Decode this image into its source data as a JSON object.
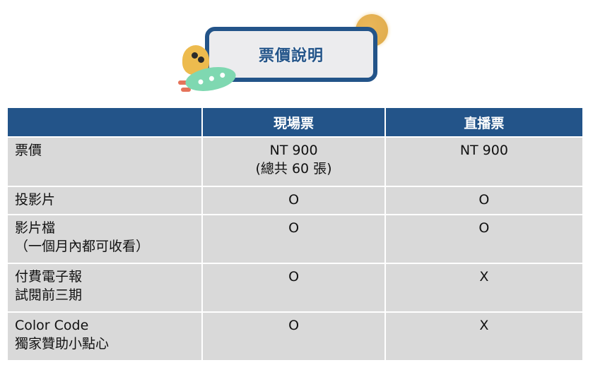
{
  "banner": {
    "title": "票價說明"
  },
  "colors": {
    "header_bg": "#235489",
    "row_bg": "#d9d9d9",
    "banner_border": "#235489"
  },
  "table": {
    "headers": [
      "",
      "現場票",
      "直播票"
    ],
    "rows": [
      {
        "label": [
          "票價"
        ],
        "onsite": [
          "NT 900",
          "(總共 60 張)"
        ],
        "live": [
          "NT 900"
        ]
      },
      {
        "label": [
          "投影片"
        ],
        "onsite": [
          "O"
        ],
        "live": [
          "O"
        ]
      },
      {
        "label": [
          "影片檔",
          "（一個月內都可收看）"
        ],
        "onsite": [
          "O"
        ],
        "live": [
          "O"
        ]
      },
      {
        "label": [
          "付費電子報",
          "試閱前三期"
        ],
        "onsite": [
          "O"
        ],
        "live": [
          "X"
        ]
      },
      {
        "label": [
          "Color Code",
          "獨家贊助小點心"
        ],
        "onsite": [
          "O"
        ],
        "live": [
          "X"
        ]
      }
    ]
  }
}
